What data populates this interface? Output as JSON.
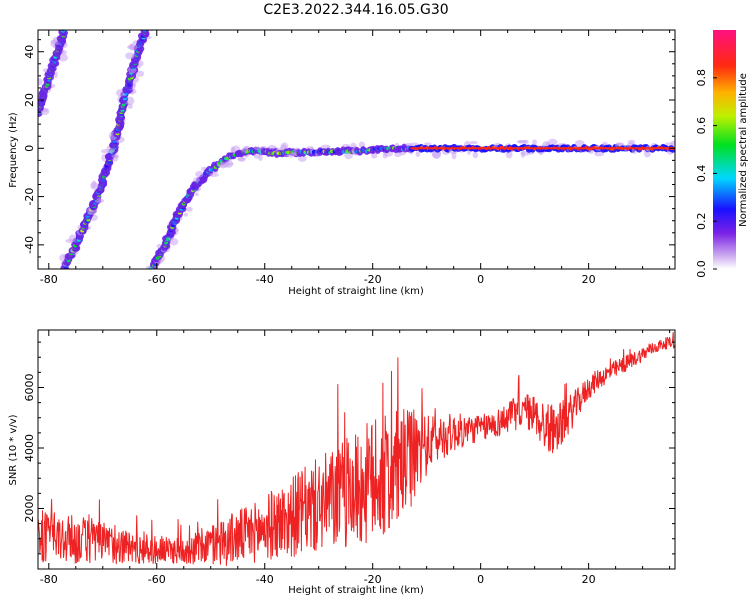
{
  "title": "C2E3.2022.344.16.05.G30",
  "chart_data": [
    {
      "type": "heatmap",
      "xlabel": "Height of straight line (km)",
      "ylabel": "Frequency (Hz)",
      "xlim": [
        -82,
        36
      ],
      "ylim": [
        -50,
        49
      ],
      "x_ticks": [
        -80,
        -60,
        -40,
        -20,
        0,
        20
      ],
      "y_ticks": [
        -40,
        -20,
        0,
        20,
        40
      ],
      "colorbar": {
        "label": "Normalized spectral amplitude",
        "range": [
          0,
          1
        ],
        "ticks": [
          0.0,
          0.2,
          0.4,
          0.6,
          0.8
        ],
        "colormap": "white-purple-blue-cyan-green-yellow-orange-red-magenta"
      },
      "tracks": [
        {
          "segments": [
            [
              -82,
              15
            ],
            [
              -77,
              50
            ]
          ]
        },
        {
          "segments": [
            [
              -77,
              -50
            ],
            [
              -75,
              -40
            ],
            [
              -71,
              -20
            ],
            [
              -68,
              0
            ],
            [
              -66,
              20
            ],
            [
              -63.5,
              40
            ],
            [
              -62,
              50
            ]
          ]
        },
        {
          "segments": [
            [
              -61,
              -50
            ],
            [
              -58,
              -38
            ],
            [
              -56,
              -27
            ],
            [
              -53,
              -16
            ],
            [
              -50,
              -9
            ],
            [
              -47,
              -4
            ],
            [
              -43,
              -1
            ],
            [
              -38,
              -2
            ],
            [
              -30,
              -1.5
            ],
            [
              -22,
              -1
            ],
            [
              -16,
              0
            ],
            [
              -12,
              0
            ],
            [
              36,
              0
            ]
          ]
        }
      ],
      "grid": false
    },
    {
      "type": "line",
      "xlabel": "Height of straight line (km)",
      "ylabel": "SNR (10 * v/v)",
      "xlim": [
        -82,
        36
      ],
      "ylim": [
        0,
        7900
      ],
      "x_ticks": [
        -80,
        -60,
        -40,
        -20,
        0,
        20
      ],
      "y_ticks": [
        2000,
        4000,
        6000
      ],
      "color": "#ee2222",
      "series": [
        {
          "x": [
            -82,
            -78,
            -74,
            -70,
            -66,
            -62,
            -58,
            -54,
            -50,
            -46,
            -42,
            -38,
            -34,
            -30,
            -26,
            -22,
            -20,
            -18,
            -16,
            -14,
            -12,
            -10,
            -8,
            -6,
            -4,
            -2,
            0,
            2,
            4,
            6,
            8,
            10,
            12,
            14,
            16,
            18,
            20,
            22,
            24,
            26,
            28,
            30,
            32,
            34,
            36
          ],
          "y": [
            1100,
            1000,
            950,
            850,
            750,
            650,
            600,
            650,
            800,
            1000,
            1200,
            1500,
            1800,
            2100,
            2400,
            2700,
            2900,
            3000,
            3200,
            3500,
            3800,
            4100,
            4300,
            4450,
            4550,
            4600,
            4650,
            4750,
            4900,
            5100,
            5250,
            5100,
            4700,
            4600,
            5000,
            5500,
            6000,
            6300,
            6500,
            6700,
            6900,
            7100,
            7300,
            7450,
            7500
          ],
          "noise": [
            900,
            850,
            800,
            700,
            600,
            500,
            450,
            500,
            700,
            900,
            1000,
            1200,
            1400,
            1600,
            1800,
            2000,
            2100,
            2100,
            2000,
            1800,
            1500,
            1000,
            800,
            700,
            600,
            500,
            450,
            450,
            500,
            550,
            600,
            650,
            900,
            800,
            700,
            500,
            400,
            350,
            300,
            300,
            250,
            250,
            200,
            200,
            200
          ]
        }
      ]
    }
  ]
}
